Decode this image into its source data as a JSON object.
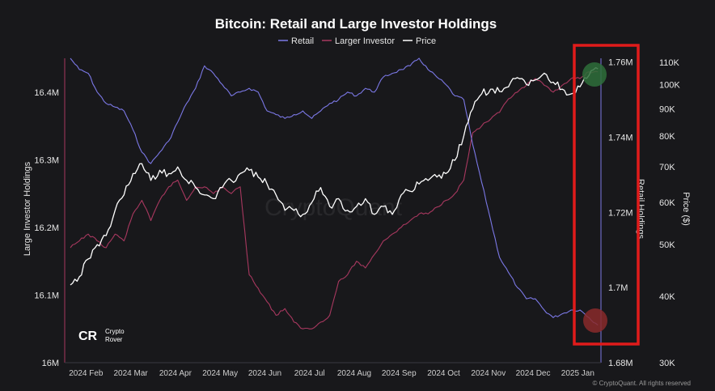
{
  "chart_data": {
    "type": "line",
    "title": "Bitcoin: Retail and Large Investor Holdings",
    "x_categories": [
      "2024 Feb",
      "2024 Mar",
      "2024 Apr",
      "2024 May",
      "2024 Jun",
      "2024 Jul",
      "2024 Aug",
      "2024 Sep",
      "2024 Oct",
      "2024 Nov",
      "2024 Dec",
      "2025 Jan"
    ],
    "x_range": [
      0,
      11.85
    ],
    "series": [
      {
        "name": "Retail",
        "axis": "Retail Holdings",
        "color": "#7b78e6",
        "x": [
          0,
          0.2,
          0.4,
          0.6,
          0.8,
          1.0,
          1.2,
          1.4,
          1.6,
          1.8,
          2.0,
          2.2,
          2.4,
          2.6,
          2.8,
          3.0,
          3.2,
          3.4,
          3.6,
          3.8,
          4.0,
          4.2,
          4.4,
          4.6,
          4.8,
          5.0,
          5.2,
          5.4,
          5.6,
          5.8,
          6.0,
          6.2,
          6.4,
          6.6,
          6.8,
          7.0,
          7.2,
          7.4,
          7.6,
          7.8,
          8.0,
          8.2,
          8.4,
          8.6,
          8.8,
          9.0,
          9.2,
          9.4,
          9.6,
          9.8,
          10.0,
          10.2,
          10.4,
          10.6,
          10.8,
          11.0,
          11.2,
          11.4,
          11.6,
          11.8
        ],
        "values": [
          1.761,
          1.758,
          1.757,
          1.752,
          1.749,
          1.748,
          1.747,
          1.742,
          1.736,
          1.733,
          1.736,
          1.739,
          1.744,
          1.749,
          1.753,
          1.759,
          1.757,
          1.754,
          1.751,
          1.752,
          1.753,
          1.752,
          1.747,
          1.746,
          1.745,
          1.746,
          1.747,
          1.745,
          1.747,
          1.749,
          1.75,
          1.752,
          1.751,
          1.753,
          1.752,
          1.756,
          1.757,
          1.758,
          1.759,
          1.761,
          1.758,
          1.756,
          1.754,
          1.751,
          1.75,
          1.738,
          1.728,
          1.718,
          1.708,
          1.704,
          1.7,
          1.697,
          1.697,
          1.694,
          1.692,
          1.693,
          1.694,
          1.694,
          1.692,
          1.69
        ]
      },
      {
        "name": "Larger Investor",
        "axis": "Large Investor Holdings",
        "color": "#a8385f",
        "x": [
          0,
          0.2,
          0.4,
          0.6,
          0.8,
          1.0,
          1.2,
          1.4,
          1.6,
          1.8,
          2.0,
          2.2,
          2.4,
          2.6,
          2.8,
          3.0,
          3.2,
          3.4,
          3.6,
          3.8,
          4.0,
          4.2,
          4.4,
          4.6,
          4.8,
          5.0,
          5.2,
          5.4,
          5.6,
          5.8,
          6.0,
          6.2,
          6.4,
          6.6,
          6.8,
          7.0,
          7.2,
          7.4,
          7.6,
          7.8,
          8.0,
          8.2,
          8.4,
          8.6,
          8.8,
          9.0,
          9.2,
          9.4,
          9.6,
          9.8,
          10.0,
          10.2,
          10.4,
          10.6,
          10.8,
          11.0,
          11.2,
          11.4,
          11.6,
          11.8
        ],
        "values": [
          16.17,
          16.18,
          16.19,
          16.18,
          16.17,
          16.19,
          16.18,
          16.22,
          16.24,
          16.21,
          16.24,
          16.26,
          16.27,
          16.24,
          16.26,
          16.26,
          16.25,
          16.26,
          16.25,
          16.26,
          16.13,
          16.11,
          16.09,
          16.07,
          16.08,
          16.06,
          16.05,
          16.05,
          16.06,
          16.07,
          16.12,
          16.13,
          16.15,
          16.14,
          16.16,
          16.18,
          16.19,
          16.2,
          16.21,
          16.22,
          16.22,
          16.23,
          16.24,
          16.25,
          16.27,
          16.34,
          16.35,
          16.36,
          16.37,
          16.39,
          16.4,
          16.41,
          16.42,
          16.41,
          16.4,
          16.41,
          16.42,
          16.42,
          16.43,
          16.43
        ]
      },
      {
        "name": "Price",
        "axis": "Price ($)",
        "color": "#ffffff",
        "x": [
          0,
          0.2,
          0.4,
          0.6,
          0.8,
          1.0,
          1.2,
          1.4,
          1.6,
          1.8,
          2.0,
          2.2,
          2.4,
          2.6,
          2.8,
          3.0,
          3.2,
          3.4,
          3.6,
          3.8,
          4.0,
          4.2,
          4.4,
          4.6,
          4.8,
          5.0,
          5.2,
          5.4,
          5.6,
          5.8,
          6.0,
          6.2,
          6.4,
          6.6,
          6.8,
          7.0,
          7.2,
          7.4,
          7.6,
          7.8,
          8.0,
          8.2,
          8.4,
          8.6,
          8.8,
          9.0,
          9.2,
          9.4,
          9.6,
          9.8,
          10.0,
          10.2,
          10.4,
          10.6,
          10.8,
          11.0,
          11.2,
          11.4,
          11.6,
          11.8
        ],
        "values": [
          42000,
          43500,
          47000,
          50000,
          52000,
          58000,
          62000,
          68000,
          71000,
          66000,
          69000,
          68000,
          70000,
          66000,
          64000,
          62000,
          61000,
          64000,
          66000,
          68000,
          69000,
          67000,
          65000,
          62000,
          58000,
          58000,
          57000,
          60000,
          64000,
          59000,
          61000,
          58000,
          59000,
          61000,
          57000,
          59000,
          57000,
          62000,
          63000,
          65000,
          66000,
          67000,
          68000,
          72000,
          80000,
          90000,
          96000,
          98000,
          97000,
          99000,
          103000,
          100000,
          102000,
          105000,
          101000,
          98000,
          96000,
          99000,
          104000,
          107000
        ]
      }
    ],
    "axes": {
      "left": {
        "label": "Large Investor Holdings",
        "ticks": [
          "16M",
          "16.1M",
          "16.2M",
          "16.3M",
          "16.4M"
        ],
        "tick_values": [
          16.0,
          16.1,
          16.2,
          16.3,
          16.4
        ],
        "range": [
          16.0,
          16.45
        ]
      },
      "right_inner": {
        "label": "Retail Holdings",
        "ticks": [
          "1.68M",
          "1.7M",
          "1.72M",
          "1.74M",
          "1.76M"
        ],
        "tick_values": [
          1.68,
          1.7,
          1.72,
          1.74,
          1.76
        ],
        "range": [
          1.68,
          1.761
        ]
      },
      "right_outer": {
        "label": "Price ($)",
        "scale": "log",
        "ticks": [
          "30K",
          "40K",
          "50K",
          "60K",
          "70K",
          "80K",
          "90K",
          "100K",
          "110K"
        ],
        "tick_values": [
          30000,
          40000,
          50000,
          60000,
          70000,
          80000,
          90000,
          100000,
          110000
        ],
        "range": [
          30000,
          112000
        ]
      }
    },
    "legend": [
      "Retail",
      "Larger Investor",
      "Price"
    ],
    "watermark": "CryptoQuant",
    "branding": [
      "Crypto",
      "Rover"
    ],
    "logo_mark": "CR",
    "credit": "© CryptoQuant. All rights reserved",
    "annotations": [
      {
        "type": "highlight-box",
        "color": "#e01b1b",
        "x_from": 11.7,
        "x_to": 12.3
      },
      {
        "type": "circle",
        "color": "#2e6e3a",
        "on_series": "Larger Investor / Price",
        "x": 11.8,
        "level": "high"
      },
      {
        "type": "circle",
        "color": "#8a2a2a",
        "on_series": "Retail",
        "x": 11.8,
        "level": "low"
      }
    ]
  }
}
